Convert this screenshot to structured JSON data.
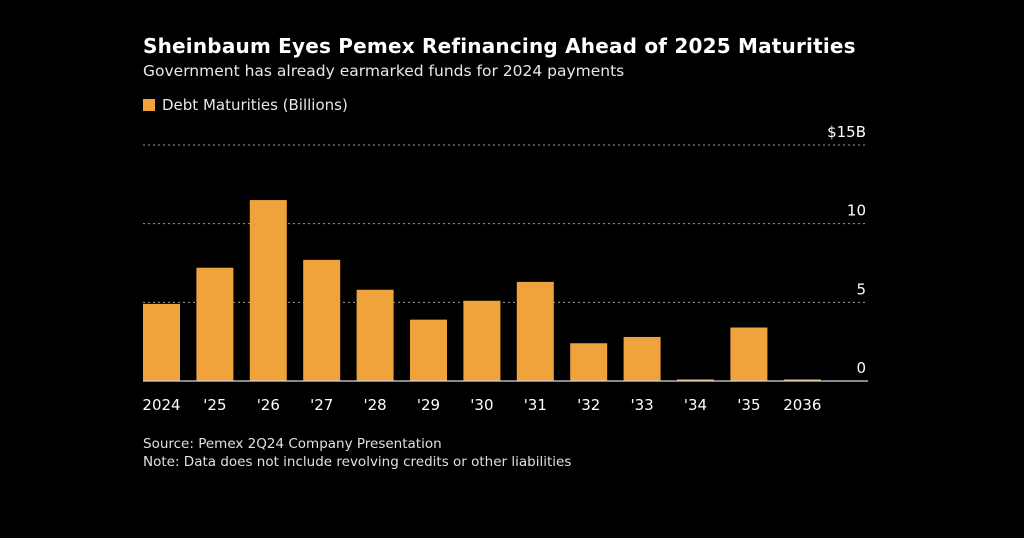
{
  "colors": {
    "background": "#000000",
    "bar": "#F0A33A",
    "text": "#FFFFFF",
    "grid": "#9A9A9A"
  },
  "chart_data": {
    "type": "bar",
    "title": "Sheinbaum Eyes Pemex Refinancing Ahead of 2025 Maturities",
    "subtitle": "Government has already earmarked funds for 2024 payments",
    "legend": [
      "Debt Maturities (Billions)"
    ],
    "legend_position": "top-left",
    "categories": [
      "2024",
      "'25",
      "'26",
      "'27",
      "'28",
      "'29",
      "'30",
      "'31",
      "'32",
      "'33",
      "'34",
      "'35",
      "2036"
    ],
    "series": [
      {
        "name": "Debt Maturities (Billions)",
        "values": [
          4.9,
          7.2,
          11.5,
          7.7,
          5.8,
          3.9,
          5.1,
          6.3,
          2.4,
          2.8,
          0.1,
          3.4,
          0.1
        ]
      }
    ],
    "ylim": [
      0,
      15
    ],
    "y_ticks": [
      {
        "value": 0,
        "label": "0"
      },
      {
        "value": 5,
        "label": "5"
      },
      {
        "value": 10,
        "label": "10"
      },
      {
        "value": 15,
        "label": "$15B"
      }
    ],
    "grid": true,
    "y_axis_position": "right",
    "source": "Source: Pemex 2Q24 Company Presentation",
    "note": "Note: Data does not include revolving credits or other liabilities"
  }
}
